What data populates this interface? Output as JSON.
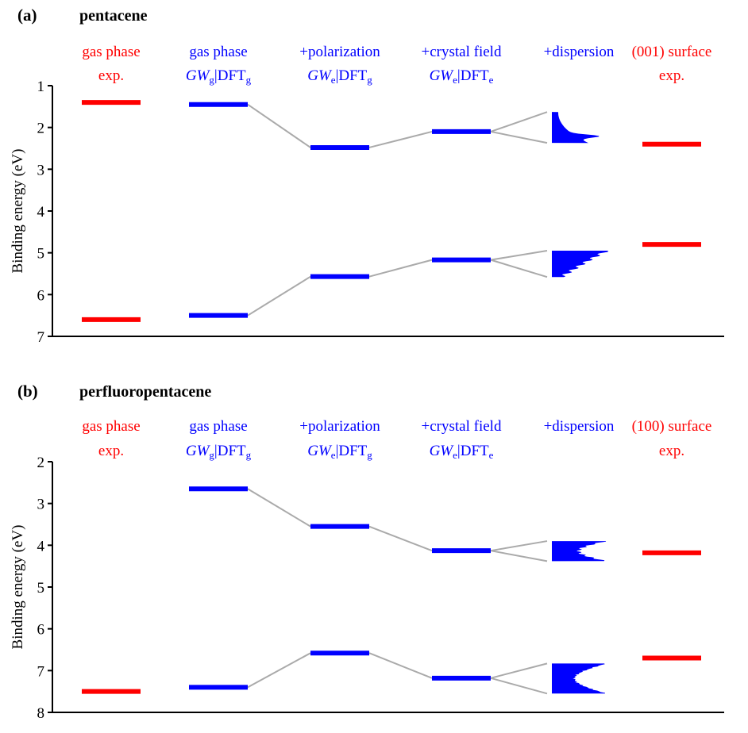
{
  "colors": {
    "theory": "#0000ff",
    "experiment": "#ff0000",
    "connector": "#aaaaaa",
    "axis": "#000000",
    "text": "#000000"
  },
  "chart_data": [
    {
      "type": "energy_level_diagram",
      "panel_label": "(a)",
      "title": "pentacene",
      "ylabel": "Binding energy (eV)",
      "ylim": [
        1,
        7
      ],
      "y_inverted": true,
      "yticks": [
        "1",
        "2",
        "3",
        "4",
        "5",
        "6",
        "7"
      ],
      "columns": [
        {
          "line1": "gas phase",
          "line2": "exp.",
          "kind": "experiment",
          "levels": [
            1.4,
            6.6
          ]
        },
        {
          "line1": "gas phase",
          "line2_parts": {
            "gw": "GW",
            "gw_sub": "g",
            "dft": "|DFT",
            "dft_sub": "g"
          },
          "kind": "theory",
          "levels": [
            1.45,
            6.5
          ]
        },
        {
          "line1": "+polarization",
          "line2_parts": {
            "gw": "GW",
            "gw_sub": "e",
            "dft": "|DFT",
            "dft_sub": "g"
          },
          "kind": "theory",
          "levels": [
            2.48,
            5.57
          ]
        },
        {
          "line1": "+crystal field",
          "line2_parts": {
            "gw": "GW",
            "gw_sub": "e",
            "dft": "|DFT",
            "dft_sub": "e"
          },
          "kind": "theory",
          "levels": [
            2.1,
            5.17
          ]
        },
        {
          "line1": "+dispersion",
          "kind": "theory-dispersion",
          "bands": [
            [
              1.63,
              2.37
            ],
            [
              4.95,
              5.58
            ]
          ]
        },
        {
          "line1": "(001) surface",
          "line2": "exp.",
          "kind": "experiment",
          "levels": [
            2.4,
            4.8
          ]
        }
      ]
    },
    {
      "type": "energy_level_diagram",
      "panel_label": "(b)",
      "title": "perfluoropentacene",
      "ylabel": "Binding energy (eV)",
      "ylim": [
        2,
        8
      ],
      "y_inverted": true,
      "yticks": [
        "2",
        "3",
        "4",
        "5",
        "6",
        "7",
        "8"
      ],
      "columns": [
        {
          "line1": "gas phase",
          "line2": "exp.",
          "kind": "experiment",
          "levels": [
            7.5
          ]
        },
        {
          "line1": "gas phase",
          "line2_parts": {
            "gw": "GW",
            "gw_sub": "g",
            "dft": "|DFT",
            "dft_sub": "g"
          },
          "kind": "theory",
          "levels": [
            2.65,
            7.4
          ]
        },
        {
          "line1": "+polarization",
          "line2_parts": {
            "gw": "GW",
            "gw_sub": "e",
            "dft": "|DFT",
            "dft_sub": "g"
          },
          "kind": "theory",
          "levels": [
            3.55,
            6.58
          ]
        },
        {
          "line1": "+crystal field",
          "line2_parts": {
            "gw": "GW",
            "gw_sub": "e",
            "dft": "|DFT",
            "dft_sub": "e"
          },
          "kind": "theory",
          "levels": [
            4.13,
            7.18
          ]
        },
        {
          "line1": "+dispersion",
          "kind": "theory-dispersion",
          "bands": [
            [
              3.9,
              4.38
            ],
            [
              6.83,
              7.55
            ]
          ]
        },
        {
          "line1": "(100) surface",
          "line2": "exp.",
          "kind": "experiment",
          "levels": [
            4.18,
            6.7
          ]
        }
      ]
    }
  ]
}
